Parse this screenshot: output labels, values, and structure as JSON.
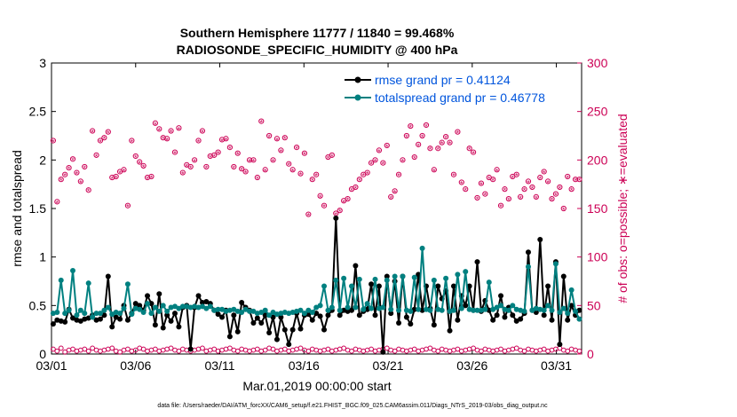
{
  "chart_data": {
    "type": "line",
    "title_line1": "Southern Hemisphere 11777 / 11840 = 99.468%",
    "title_line2": "RADIOSONDE_SPECIFIC_HUMIDITY @ 400 hPa",
    "xlabel": "Mar.01,2019 00:00:00 start",
    "ylabel": "rmse and totalspread",
    "ylabel_right": "# of obs: o=possible; ∗=evaluated",
    "footer": "data file: /Users/raeder/DAI/ATM_forcXX/CAM6_setup/f.e21.FHIST_BGC.f09_025.CAM6assim.011/Diags_NTrS_2019-03/obs_diag_output.nc",
    "x_range": [
      0,
      31.5
    ],
    "ylim": [
      0,
      3
    ],
    "ylim_right": [
      0,
      300
    ],
    "x_ticks": [
      {
        "value": 0,
        "label": "03/01"
      },
      {
        "value": 5,
        "label": "03/06"
      },
      {
        "value": 10,
        "label": "03/11"
      },
      {
        "value": 15,
        "label": "03/16"
      },
      {
        "value": 20,
        "label": "03/21"
      },
      {
        "value": 25,
        "label": "03/26"
      },
      {
        "value": 30,
        "label": "03/31"
      }
    ],
    "y_ticks": [
      "0",
      "0.5",
      "1",
      "1.5",
      "2",
      "2.5",
      "3"
    ],
    "y_ticks_right": [
      "0",
      "50",
      "100",
      "150",
      "200",
      "250",
      "300"
    ],
    "series": [
      {
        "name": "rmse",
        "legend": "rmse grand pr = 0.41124",
        "color": "#000000",
        "values": [
          0.31,
          0.35,
          0.34,
          0.33,
          0.46,
          0.37,
          0.35,
          0.34,
          0.36,
          0.37,
          0.4,
          0.35,
          0.36,
          0.4,
          0.8,
          0.28,
          0.38,
          0.36,
          0.5,
          0.35,
          0.42,
          0.52,
          0.5,
          0.45,
          0.6,
          0.52,
          0.3,
          0.62,
          0.27,
          0.4,
          0.34,
          0.42,
          0.28,
          0.48,
          0.5,
          0.05,
          0.48,
          0.6,
          0.53,
          0.54,
          0.52,
          0.45,
          0.41,
          0.38,
          0.45,
          0.18,
          0.4,
          0.23,
          0.53,
          0.48,
          0.45,
          0.32,
          0.37,
          0.32,
          0.4,
          0.22,
          0.38,
          0.15,
          0.38,
          0.25,
          0.1,
          0.25,
          0.42,
          0.26,
          0.4,
          0.41,
          0.35,
          0.42,
          0.39,
          0.25,
          0.4,
          0.45,
          1.4,
          0.4,
          0.45,
          0.44,
          0.45,
          0.91,
          0.4,
          0.44,
          0.46,
          0.72,
          0.4,
          0.7,
          0.02,
          0.8,
          0.42,
          0.75,
          0.32,
          0.8,
          0.38,
          0.31,
          0.46,
          0.82,
          0.45,
          0.7,
          0.47,
          0.3,
          0.7,
          0.57,
          0.65,
          0.24,
          0.7,
          0.35,
          0.6,
          0.5,
          0.7,
          0.45,
          0.95,
          0.44,
          0.55,
          0.45,
          0.35,
          0.4,
          0.6,
          0.38,
          0.48,
          0.4,
          0.34,
          0.36,
          0.42,
          1.05,
          0.45,
          0.43,
          1.18,
          0.4,
          0.7,
          0.35,
          0.95,
          0.1,
          0.8,
          0.35,
          0.5,
          0.4,
          0.45
        ]
      },
      {
        "name": "totalspread",
        "legend": "totalspread grand pr = 0.46778",
        "color": "#008080",
        "values": [
          0.42,
          0.43,
          0.76,
          0.42,
          0.45,
          0.86,
          0.4,
          0.45,
          0.42,
          0.73,
          0.38,
          0.42,
          0.42,
          0.45,
          0.48,
          0.41,
          0.43,
          0.42,
          0.47,
          0.72,
          0.41,
          0.47,
          0.46,
          0.43,
          0.52,
          0.42,
          0.48,
          0.44,
          0.5,
          0.44,
          0.48,
          0.49,
          0.47,
          0.49,
          0.49,
          0.48,
          0.49,
          0.48,
          0.49,
          0.47,
          0.49,
          0.45,
          0.46,
          0.46,
          0.44,
          0.45,
          0.46,
          0.44,
          0.43,
          0.46,
          0.44,
          0.44,
          0.42,
          0.43,
          0.45,
          0.4,
          0.43,
          0.41,
          0.42,
          0.43,
          0.42,
          0.43,
          0.44,
          0.45,
          0.42,
          0.45,
          0.43,
          0.48,
          0.5,
          0.7,
          0.45,
          0.48,
          0.76,
          0.45,
          0.78,
          0.48,
          0.7,
          0.48,
          0.77,
          0.46,
          0.52,
          0.47,
          0.77,
          0.47,
          0.48,
          0.76,
          0.46,
          0.8,
          0.45,
          0.8,
          0.45,
          0.44,
          0.79,
          0.46,
          1.09,
          0.46,
          0.45,
          0.76,
          0.46,
          0.45,
          0.78,
          0.44,
          0.45,
          0.82,
          0.47,
          0.85,
          0.46,
          0.45,
          0.45,
          0.45,
          0.46,
          0.74,
          0.46,
          0.48,
          0.5,
          0.46,
          0.45,
          0.5,
          0.46,
          0.45,
          0.44,
          0.9,
          0.45,
          0.47,
          0.46,
          0.45,
          0.5,
          0.45,
          0.93,
          0.43,
          0.47,
          0.42,
          0.66,
          0.44,
          0.36
        ]
      }
    ],
    "obs_possible": [
      220,
      157,
      180,
      185,
      192,
      201,
      187,
      178,
      193,
      169,
      230,
      205,
      220,
      223,
      229,
      182,
      183,
      188,
      190,
      153,
      220,
      204,
      198,
      194,
      182,
      183,
      238,
      232,
      223,
      222,
      230,
      208,
      233,
      187,
      195,
      193,
      200,
      220,
      230,
      193,
      204,
      205,
      208,
      221,
      222,
      213,
      193,
      207,
      191,
      188,
      200,
      200,
      182,
      240,
      190,
      225,
      200,
      222,
      210,
      223,
      196,
      190,
      213,
      186,
      207,
      144,
      180,
      185,
      163,
      153,
      203,
      205,
      145,
      148,
      158,
      160,
      170,
      172,
      180,
      185,
      187,
      197,
      200,
      210,
      197,
      215,
      162,
      168,
      185,
      200,
      225,
      235,
      203,
      216,
      225,
      236,
      212,
      190,
      212,
      218,
      224,
      218,
      185,
      229,
      177,
      170,
      212,
      208,
      161,
      176,
      165,
      182,
      180,
      190,
      153,
      170,
      160,
      183,
      185,
      162,
      170,
      178,
      172,
      162,
      182,
      188,
      178,
      160,
      165,
      172,
      150,
      183,
      170,
      180,
      180
    ],
    "obs_low": [
      5,
      3,
      6,
      2,
      4,
      5,
      3,
      4,
      5,
      3,
      6,
      4,
      3,
      4,
      5,
      6,
      3,
      2,
      4,
      5,
      3,
      4,
      6,
      5,
      3,
      4,
      5,
      3,
      4,
      5,
      6,
      4,
      3,
      5,
      4,
      3,
      4,
      5,
      6,
      3,
      4,
      5,
      3,
      4,
      5,
      6,
      4,
      3,
      5,
      4,
      3,
      4,
      5,
      3,
      4,
      6,
      5,
      3,
      4,
      5,
      3,
      4,
      5,
      6,
      4,
      3,
      5,
      4,
      3,
      4,
      5,
      3,
      4,
      5,
      6,
      4,
      3,
      5,
      4,
      3,
      4,
      5,
      3,
      4,
      5,
      6,
      4,
      3,
      5,
      4,
      3,
      4,
      5,
      3,
      4,
      5,
      6,
      4,
      3,
      5,
      4,
      3,
      4,
      5,
      3,
      4,
      5,
      6,
      4,
      3,
      5,
      4,
      3,
      4,
      5,
      3,
      4,
      5,
      6,
      4,
      3,
      5,
      4,
      3,
      4,
      5,
      3,
      4,
      5,
      6,
      4,
      3,
      5,
      4,
      3
    ]
  }
}
